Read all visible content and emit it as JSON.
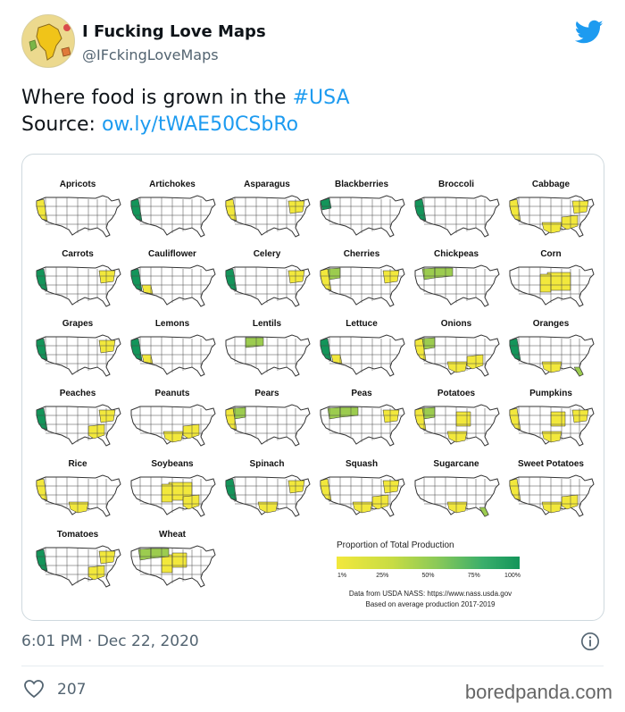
{
  "account": {
    "display_name": "I Fucking Love Maps",
    "handle": "@IFckingLoveMaps"
  },
  "tweet": {
    "line1_text": "Where food is grown in the ",
    "hashtag": "#USA",
    "line2_prefix": "Source: ",
    "source_link": "ow.ly/tWAE50CSbRo",
    "timestamp": "6:01 PM · Dec 22, 2020",
    "like_count": "207"
  },
  "maps": [
    {
      "title": "Apricots",
      "regions": [
        "west-coast"
      ]
    },
    {
      "title": "Artichokes",
      "regions": [
        "west-coast-strong"
      ]
    },
    {
      "title": "Asparagus",
      "regions": [
        "west-coast",
        "northeast"
      ]
    },
    {
      "title": "Blackberries",
      "regions": [
        "northwest-strong"
      ]
    },
    {
      "title": "Broccoli",
      "regions": [
        "west-coast-strong"
      ]
    },
    {
      "title": "Cabbage",
      "regions": [
        "west-coast",
        "northeast",
        "southeast",
        "south"
      ]
    },
    {
      "title": "Carrots",
      "regions": [
        "west-coast-strong",
        "northeast"
      ]
    },
    {
      "title": "Cauliflower",
      "regions": [
        "west-coast-strong",
        "southwest"
      ]
    },
    {
      "title": "Celery",
      "regions": [
        "west-coast-strong",
        "northeast"
      ]
    },
    {
      "title": "Cherries",
      "regions": [
        "west-coast",
        "northwest",
        "northeast"
      ]
    },
    {
      "title": "Chickpeas",
      "regions": [
        "northwest",
        "north-central"
      ]
    },
    {
      "title": "Corn",
      "regions": [
        "midwest-full",
        "plains"
      ]
    },
    {
      "title": "Grapes",
      "regions": [
        "west-coast-strong",
        "northeast"
      ]
    },
    {
      "title": "Lemons",
      "regions": [
        "west-coast-strong",
        "southwest"
      ]
    },
    {
      "title": "Lentils",
      "regions": [
        "north-central"
      ]
    },
    {
      "title": "Lettuce",
      "regions": [
        "west-coast-strong",
        "southwest"
      ]
    },
    {
      "title": "Onions",
      "regions": [
        "west-coast",
        "northwest",
        "south",
        "southeast"
      ]
    },
    {
      "title": "Oranges",
      "regions": [
        "west-coast-strong",
        "south",
        "florida"
      ]
    },
    {
      "title": "Peaches",
      "regions": [
        "west-coast-strong",
        "southeast",
        "northeast"
      ]
    },
    {
      "title": "Peanuts",
      "regions": [
        "southeast",
        "south"
      ]
    },
    {
      "title": "Pears",
      "regions": [
        "west-coast",
        "northwest"
      ]
    },
    {
      "title": "Peas",
      "regions": [
        "northwest",
        "north-central",
        "northeast"
      ]
    },
    {
      "title": "Potatoes",
      "regions": [
        "northwest",
        "west-coast",
        "midwest",
        "south"
      ]
    },
    {
      "title": "Pumpkins",
      "regions": [
        "west-coast",
        "midwest",
        "northeast",
        "south"
      ]
    },
    {
      "title": "Rice",
      "regions": [
        "west-coast",
        "south"
      ]
    },
    {
      "title": "Soybeans",
      "regions": [
        "midwest-full",
        "plains",
        "southeast"
      ]
    },
    {
      "title": "Spinach",
      "regions": [
        "west-coast-strong",
        "south",
        "northeast"
      ]
    },
    {
      "title": "Squash",
      "regions": [
        "west-coast",
        "south",
        "southeast",
        "northeast"
      ]
    },
    {
      "title": "Sugarcane",
      "regions": [
        "south",
        "florida"
      ]
    },
    {
      "title": "Sweet Potatoes",
      "regions": [
        "west-coast",
        "south",
        "southeast"
      ]
    },
    {
      "title": "Tomatoes",
      "regions": [
        "west-coast-strong",
        "northeast",
        "southeast"
      ]
    },
    {
      "title": "Wheat",
      "regions": [
        "plains",
        "northwest",
        "north-central",
        "midwest"
      ]
    }
  ],
  "legend": {
    "title": "Proportion of Total Production",
    "ticks": [
      "1%",
      "25%",
      "50%",
      "75%",
      "100%"
    ],
    "tick_values": [
      0.01,
      0.25,
      0.5,
      0.75,
      1.0
    ],
    "source_line1": "Data from USDA NASS: https://www.nass.usda.gov",
    "source_line2": "Based on average production 2017-2019"
  },
  "watermark": "boredpanda.com",
  "colors": {
    "link": "#1d9bf0",
    "twitter_blue": "#1d9bf0",
    "low": "#f2e83c",
    "mid": "#9ccc4f",
    "high": "#13955a"
  },
  "icons": {
    "bird": "twitter-bird-icon",
    "info": "info-icon",
    "like": "heart-icon"
  }
}
